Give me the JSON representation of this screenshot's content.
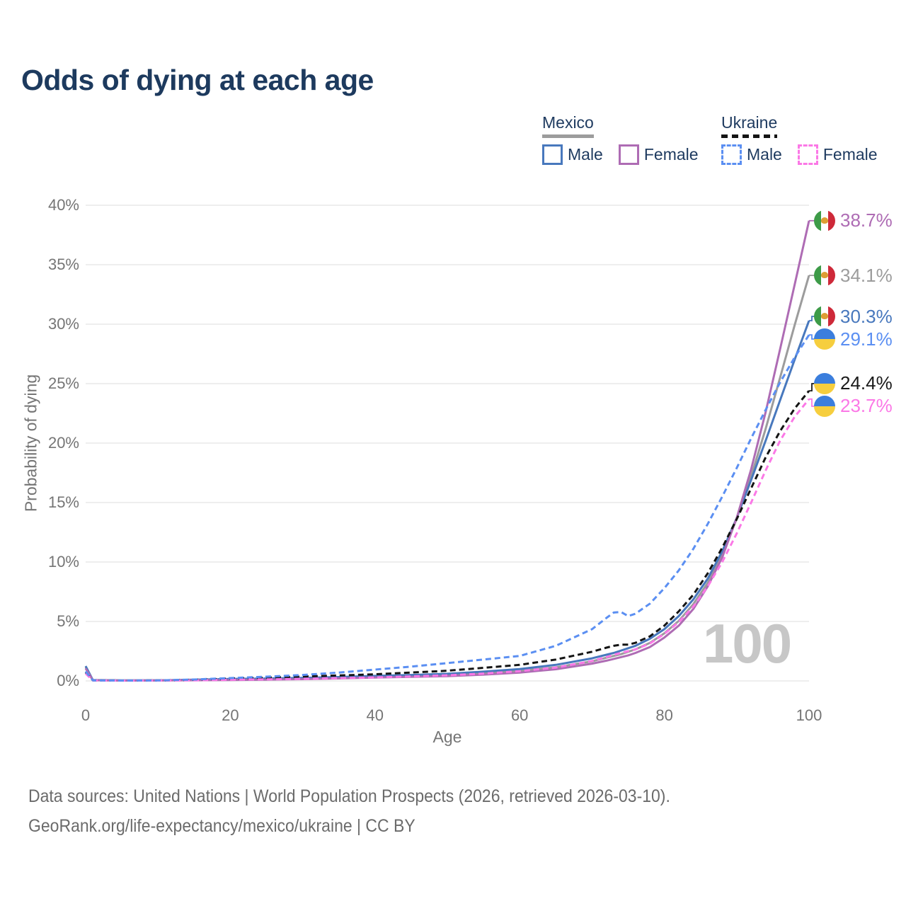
{
  "title": "Odds of dying at each age",
  "watermark": "100",
  "legend": {
    "groups": [
      {
        "name": "Mexico",
        "line_style": "solid",
        "underline_color": "#9c9c9c",
        "items": [
          {
            "label": "Male",
            "color": "#4878bd"
          },
          {
            "label": "Female",
            "color": "#ae6cb4"
          }
        ]
      },
      {
        "name": "Ukraine",
        "line_style": "dashed",
        "underline_color": "#141414",
        "items": [
          {
            "label": "Male",
            "color": "#5b8ff2"
          },
          {
            "label": "Female",
            "color": "#fb78e6"
          }
        ]
      }
    ]
  },
  "axes": {
    "y_label": "Probability of dying",
    "x_label": "Age"
  },
  "end_labels": [
    {
      "series": "Mexico Female",
      "flag": "mexico",
      "value": "38.7%",
      "v": 38.7,
      "color": "#ae6cb4"
    },
    {
      "series": "Mexico Total",
      "flag": "mexico",
      "value": "34.1%",
      "v": 34.1,
      "color": "#9c9c9c"
    },
    {
      "series": "Mexico Male",
      "flag": "mexico",
      "value": "30.3%",
      "v": 30.3,
      "color": "#4878bd"
    },
    {
      "series": "Ukraine Male",
      "flag": "ukraine",
      "value": "29.1%",
      "v": 29.1,
      "color": "#5b8ff2"
    },
    {
      "series": "Ukraine Total",
      "flag": "ukraine",
      "value": "24.4%",
      "v": 24.4,
      "color": "#1a1a1a"
    },
    {
      "series": "Ukraine Female",
      "flag": "ukraine",
      "value": "23.7%",
      "v": 23.7,
      "color": "#fb78e6"
    }
  ],
  "footer": {
    "line1": "Data sources: United Nations | World Population Prospects (2026, retrieved 2026-03-10).",
    "line2": "GeoRank.org/life-expectancy/mexico/ukraine | CC BY"
  },
  "chart_data": {
    "type": "line",
    "title": "Odds of dying at each age",
    "xlabel": "Age",
    "ylabel": "Probability of dying",
    "xlim": [
      0,
      100
    ],
    "ylim": [
      0,
      40
    ],
    "x_ticks": [
      0,
      20,
      40,
      60,
      80,
      100
    ],
    "y_ticks_pct": [
      0,
      5,
      10,
      15,
      20,
      25,
      30,
      35,
      40
    ],
    "grid": "horizontal only",
    "legend_position": "top-right",
    "note": "values are probability of dying at each age in percent",
    "series": [
      {
        "name": "Mexico Total",
        "country": "Mexico",
        "sex": "total",
        "color": "#9c9c9c",
        "dash": false,
        "end_value_pct": 34.1,
        "points": [
          [
            0,
            1.15
          ],
          [
            1,
            0.065
          ],
          [
            5,
            0.035
          ],
          [
            10,
            0.045
          ],
          [
            15,
            0.08
          ],
          [
            20,
            0.13
          ],
          [
            25,
            0.16
          ],
          [
            30,
            0.2
          ],
          [
            35,
            0.27
          ],
          [
            40,
            0.36
          ],
          [
            45,
            0.43
          ],
          [
            50,
            0.51
          ],
          [
            55,
            0.66
          ],
          [
            60,
            0.85
          ],
          [
            65,
            1.15
          ],
          [
            70,
            1.65
          ],
          [
            72,
            1.95
          ],
          [
            73,
            2.1
          ],
          [
            74,
            2.25
          ],
          [
            75,
            2.45
          ],
          [
            76,
            2.65
          ],
          [
            78,
            3.2
          ],
          [
            80,
            4.0
          ],
          [
            82,
            5.05
          ],
          [
            84,
            6.45
          ],
          [
            86,
            8.25
          ],
          [
            88,
            10.65
          ],
          [
            90,
            13.65
          ],
          [
            92,
            17.2
          ],
          [
            94,
            21.2
          ],
          [
            96,
            25.5
          ],
          [
            98,
            29.9
          ],
          [
            100,
            34.1
          ]
        ]
      },
      {
        "name": "Mexico Male",
        "country": "Mexico",
        "sex": "male",
        "color": "#4878bd",
        "dash": false,
        "end_value_pct": 30.3,
        "points": [
          [
            0,
            1.25
          ],
          [
            1,
            0.07
          ],
          [
            5,
            0.04
          ],
          [
            10,
            0.05
          ],
          [
            15,
            0.1
          ],
          [
            20,
            0.16
          ],
          [
            25,
            0.2
          ],
          [
            30,
            0.25
          ],
          [
            35,
            0.33
          ],
          [
            40,
            0.42
          ],
          [
            45,
            0.5
          ],
          [
            50,
            0.6
          ],
          [
            55,
            0.78
          ],
          [
            60,
            1.0
          ],
          [
            65,
            1.35
          ],
          [
            70,
            1.9
          ],
          [
            72,
            2.2
          ],
          [
            73,
            2.35
          ],
          [
            74,
            2.55
          ],
          [
            75,
            2.75
          ],
          [
            76,
            2.95
          ],
          [
            78,
            3.55
          ],
          [
            80,
            4.35
          ],
          [
            82,
            5.45
          ],
          [
            84,
            6.85
          ],
          [
            86,
            8.6
          ],
          [
            88,
            10.9
          ],
          [
            90,
            13.7
          ],
          [
            92,
            16.9
          ],
          [
            94,
            20.2
          ],
          [
            96,
            23.6
          ],
          [
            98,
            27.0
          ],
          [
            100,
            30.3
          ]
        ]
      },
      {
        "name": "Mexico Female",
        "country": "Mexico",
        "sex": "female",
        "color": "#ae6cb4",
        "dash": false,
        "end_value_pct": 38.7,
        "points": [
          [
            0,
            1.05
          ],
          [
            1,
            0.06
          ],
          [
            5,
            0.03
          ],
          [
            10,
            0.04
          ],
          [
            15,
            0.06
          ],
          [
            20,
            0.08
          ],
          [
            25,
            0.11
          ],
          [
            30,
            0.15
          ],
          [
            35,
            0.21
          ],
          [
            40,
            0.28
          ],
          [
            45,
            0.34
          ],
          [
            50,
            0.4
          ],
          [
            55,
            0.53
          ],
          [
            60,
            0.7
          ],
          [
            65,
            0.98
          ],
          [
            70,
            1.45
          ],
          [
            72,
            1.7
          ],
          [
            73,
            1.85
          ],
          [
            74,
            2.0
          ],
          [
            75,
            2.15
          ],
          [
            76,
            2.35
          ],
          [
            78,
            2.85
          ],
          [
            80,
            3.65
          ],
          [
            82,
            4.65
          ],
          [
            84,
            6.05
          ],
          [
            86,
            7.95
          ],
          [
            88,
            10.4
          ],
          [
            90,
            13.7
          ],
          [
            92,
            17.8
          ],
          [
            94,
            22.6
          ],
          [
            96,
            27.9
          ],
          [
            98,
            33.3
          ],
          [
            100,
            38.7
          ]
        ]
      },
      {
        "name": "Ukraine Total",
        "country": "Ukraine",
        "sex": "total",
        "color": "#141414",
        "dash": true,
        "end_value_pct": 24.4,
        "points": [
          [
            0,
            0.72
          ],
          [
            1,
            0.045
          ],
          [
            5,
            0.028
          ],
          [
            10,
            0.035
          ],
          [
            15,
            0.09
          ],
          [
            20,
            0.2
          ],
          [
            25,
            0.28
          ],
          [
            30,
            0.37
          ],
          [
            35,
            0.46
          ],
          [
            40,
            0.56
          ],
          [
            45,
            0.7
          ],
          [
            50,
            0.86
          ],
          [
            55,
            1.1
          ],
          [
            60,
            1.35
          ],
          [
            65,
            1.8
          ],
          [
            70,
            2.45
          ],
          [
            72,
            2.8
          ],
          [
            73,
            2.95
          ],
          [
            74,
            3.05
          ],
          [
            75,
            3.05
          ],
          [
            76,
            3.2
          ],
          [
            78,
            3.75
          ],
          [
            80,
            4.65
          ],
          [
            82,
            5.85
          ],
          [
            84,
            7.25
          ],
          [
            86,
            9.05
          ],
          [
            88,
            11.2
          ],
          [
            90,
            13.6
          ],
          [
            92,
            16.2
          ],
          [
            94,
            18.8
          ],
          [
            96,
            21.0
          ],
          [
            98,
            22.9
          ],
          [
            100,
            24.4
          ]
        ]
      },
      {
        "name": "Ukraine Female",
        "country": "Ukraine",
        "sex": "female",
        "color": "#fb78e6",
        "dash": true,
        "end_value_pct": 23.7,
        "points": [
          [
            0,
            0.62
          ],
          [
            1,
            0.04
          ],
          [
            5,
            0.025
          ],
          [
            10,
            0.03
          ],
          [
            15,
            0.05
          ],
          [
            20,
            0.1
          ],
          [
            25,
            0.13
          ],
          [
            30,
            0.17
          ],
          [
            35,
            0.23
          ],
          [
            40,
            0.3
          ],
          [
            45,
            0.38
          ],
          [
            50,
            0.47
          ],
          [
            55,
            0.62
          ],
          [
            60,
            0.82
          ],
          [
            65,
            1.12
          ],
          [
            70,
            1.68
          ],
          [
            72,
            2.0
          ],
          [
            73,
            2.2
          ],
          [
            74,
            2.35
          ],
          [
            75,
            2.5
          ],
          [
            76,
            2.65
          ],
          [
            78,
            3.15
          ],
          [
            80,
            3.95
          ],
          [
            82,
            4.95
          ],
          [
            84,
            6.25
          ],
          [
            86,
            7.95
          ],
          [
            88,
            10.0
          ],
          [
            90,
            12.4
          ],
          [
            92,
            15.0
          ],
          [
            94,
            17.7
          ],
          [
            96,
            20.2
          ],
          [
            98,
            22.2
          ],
          [
            100,
            23.7
          ]
        ]
      },
      {
        "name": "Ukraine Male",
        "country": "Ukraine",
        "sex": "male",
        "color": "#5b8ff2",
        "dash": true,
        "end_value_pct": 29.1,
        "points": [
          [
            0,
            0.8
          ],
          [
            1,
            0.05
          ],
          [
            5,
            0.03
          ],
          [
            10,
            0.04
          ],
          [
            15,
            0.12
          ],
          [
            20,
            0.24
          ],
          [
            25,
            0.36
          ],
          [
            30,
            0.5
          ],
          [
            35,
            0.7
          ],
          [
            40,
            0.95
          ],
          [
            45,
            1.2
          ],
          [
            50,
            1.5
          ],
          [
            55,
            1.8
          ],
          [
            60,
            2.1
          ],
          [
            65,
            2.95
          ],
          [
            70,
            4.35
          ],
          [
            72,
            5.3
          ],
          [
            73,
            5.75
          ],
          [
            74,
            5.8
          ],
          [
            75,
            5.45
          ],
          [
            76,
            5.65
          ],
          [
            78,
            6.5
          ],
          [
            80,
            7.8
          ],
          [
            82,
            9.3
          ],
          [
            84,
            11.1
          ],
          [
            86,
            13.2
          ],
          [
            88,
            15.5
          ],
          [
            90,
            17.9
          ],
          [
            92,
            20.4
          ],
          [
            94,
            22.8
          ],
          [
            96,
            25.1
          ],
          [
            98,
            27.2
          ],
          [
            100,
            29.1
          ]
        ]
      }
    ]
  }
}
